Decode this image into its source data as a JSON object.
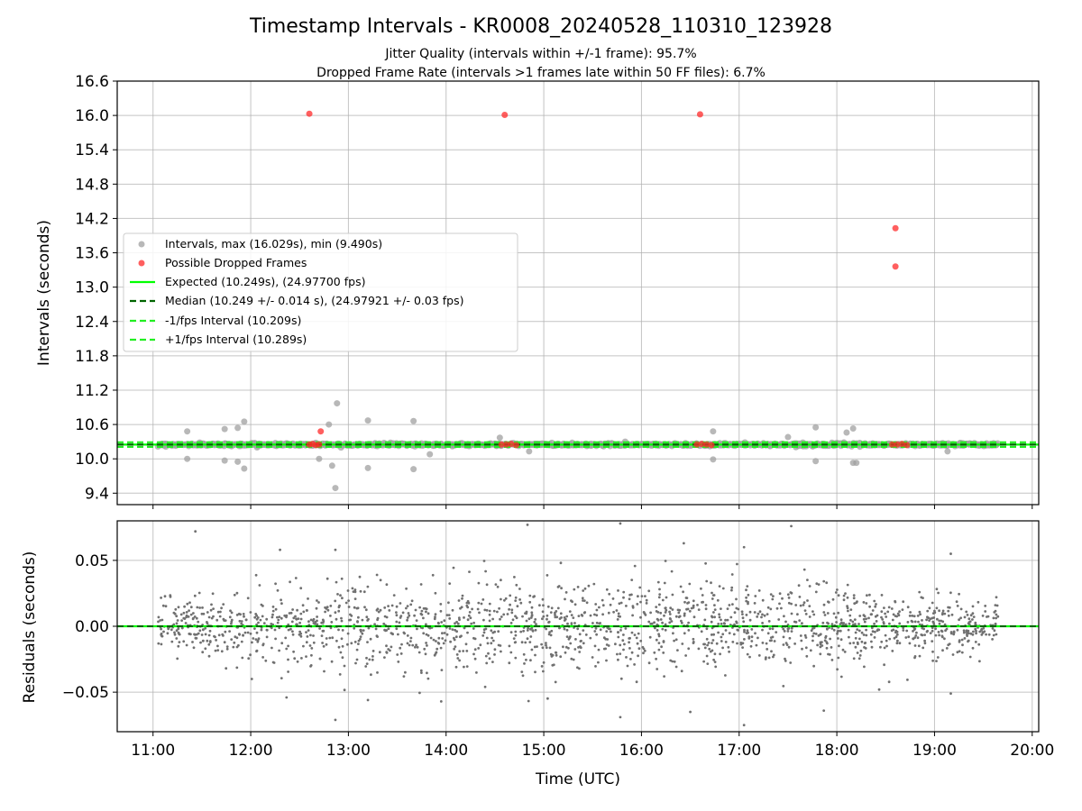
{
  "title": "Timestamp Intervals - KR0008_20240528_110310_123928",
  "subtitle_lines": [
    "Jitter Quality (intervals within +/-1 frame): 95.7%",
    "Dropped Frame Rate (intervals >1 frames late within 50 FF files): 6.7%"
  ],
  "colors": {
    "intervals": "#a0a0a0",
    "dropped": "#ff2a2a",
    "expected": "#00ff00",
    "median": "#006400",
    "bounds": "#22ee22",
    "residuals": "#707070",
    "grid": "#b0b0b0"
  },
  "chart_data": [
    {
      "type": "scatter",
      "ylabel": "Intervals (seconds)",
      "ylim": [
        9.2,
        16.6
      ],
      "xlim": [
        "10:38",
        "20:04"
      ],
      "yticks": [
        "16.6",
        "16.0",
        "15.4",
        "14.8",
        "14.2",
        "13.6",
        "13.0",
        "12.4",
        "11.8",
        "11.2",
        "10.6",
        "10.0",
        "9.4"
      ],
      "grid": true,
      "legend_position": "center-left",
      "legend": [
        "Intervals, max (16.029s), min (9.490s)",
        "Possible Dropped Frames",
        "Expected (10.249s), (24.97700 fps)",
        "Median (10.249 +/- 0.014 s), (24.97921 +/- 0.03 fps)",
        "-1/fps Interval (10.209s)",
        "+1/fps Interval (10.289s)"
      ],
      "reference_lines": {
        "expected": 10.249,
        "median": 10.249,
        "minus_1fps": 10.209,
        "plus_1fps": 10.289
      },
      "series": [
        {
          "name": "Intervals, max (16.029s), min (9.490s)",
          "points": [
            [
              "11:21",
              10.48
            ],
            [
              "11:21",
              10.0
            ],
            [
              "11:44",
              10.52
            ],
            [
              "11:44",
              9.97
            ],
            [
              "11:52",
              10.54
            ],
            [
              "11:52",
              9.95
            ],
            [
              "11:56",
              10.65
            ],
            [
              "11:56",
              9.83
            ],
            [
              "12:40",
              10.28
            ],
            [
              "12:42",
              10.0
            ],
            [
              "12:48",
              10.6
            ],
            [
              "12:50",
              9.88
            ],
            [
              "12:53",
              10.97
            ],
            [
              "12:52",
              9.49
            ],
            [
              "13:12",
              10.67
            ],
            [
              "13:12",
              9.84
            ],
            [
              "13:40",
              10.66
            ],
            [
              "13:40",
              9.82
            ],
            [
              "13:50",
              10.08
            ],
            [
              "14:33",
              10.37
            ],
            [
              "14:51",
              10.13
            ],
            [
              "15:50",
              10.3
            ],
            [
              "16:44",
              10.48
            ],
            [
              "16:44",
              9.99
            ],
            [
              "17:30",
              10.38
            ],
            [
              "17:47",
              10.55
            ],
            [
              "17:47",
              9.96
            ],
            [
              "18:06",
              10.46
            ],
            [
              "18:10",
              10.53
            ],
            [
              "18:10",
              9.93
            ],
            [
              "18:12",
              9.93
            ],
            [
              "19:08",
              10.13
            ]
          ]
        },
        {
          "name": "Possible Dropped Frames",
          "points": [
            [
              "12:36",
              16.03
            ],
            [
              "14:36",
              16.01
            ],
            [
              "16:36",
              16.02
            ],
            [
              "18:36",
              14.03
            ],
            [
              "18:36",
              13.36
            ],
            [
              "12:43",
              10.48
            ],
            [
              "12:36",
              10.25
            ],
            [
              "12:38",
              10.26
            ],
            [
              "12:40",
              10.24
            ],
            [
              "12:42",
              10.25
            ],
            [
              "14:34",
              10.25
            ],
            [
              "14:37",
              10.25
            ],
            [
              "14:40",
              10.26
            ],
            [
              "14:43",
              10.24
            ],
            [
              "16:34",
              10.25
            ],
            [
              "16:37",
              10.26
            ],
            [
              "16:40",
              10.25
            ],
            [
              "16:43",
              10.24
            ],
            [
              "18:34",
              10.25
            ],
            [
              "18:37",
              10.25
            ],
            [
              "18:40",
              10.26
            ],
            [
              "18:43",
              10.24
            ]
          ]
        }
      ]
    },
    {
      "type": "scatter",
      "xlabel": "Time (UTC)",
      "ylabel": "Residuals (seconds)",
      "ylim": [
        -0.08,
        0.08
      ],
      "yticks": [
        "0.05",
        "0.00",
        "−0.05"
      ],
      "xticks": [
        "11:00",
        "12:00",
        "13:00",
        "14:00",
        "15:00",
        "16:00",
        "17:00",
        "18:00",
        "19:00",
        "20:00"
      ],
      "grid": true,
      "reference_line": 0.0,
      "series": [
        {
          "name": "Residuals",
          "time_range": [
            "11:03",
            "19:39"
          ],
          "approx_count": 1800,
          "spread_std_seconds": 0.018,
          "extreme_points": [
            [
              "11:26",
              0.072
            ],
            [
              "12:18",
              0.058
            ],
            [
              "12:22",
              -0.054
            ],
            [
              "12:52",
              0.058
            ],
            [
              "12:52",
              -0.071
            ],
            [
              "13:12",
              -0.056
            ],
            [
              "13:57",
              -0.057
            ],
            [
              "14:24",
              -0.046
            ],
            [
              "14:50",
              0.077
            ],
            [
              "15:47",
              0.078
            ],
            [
              "15:47",
              -0.069
            ],
            [
              "16:26",
              0.063
            ],
            [
              "16:30",
              -0.065
            ],
            [
              "17:03",
              0.06
            ],
            [
              "17:03",
              -0.075
            ],
            [
              "17:32",
              0.076
            ],
            [
              "17:52",
              -0.064
            ],
            [
              "18:26",
              -0.048
            ],
            [
              "19:10",
              0.055
            ],
            [
              "19:10",
              -0.051
            ]
          ]
        }
      ]
    }
  ]
}
